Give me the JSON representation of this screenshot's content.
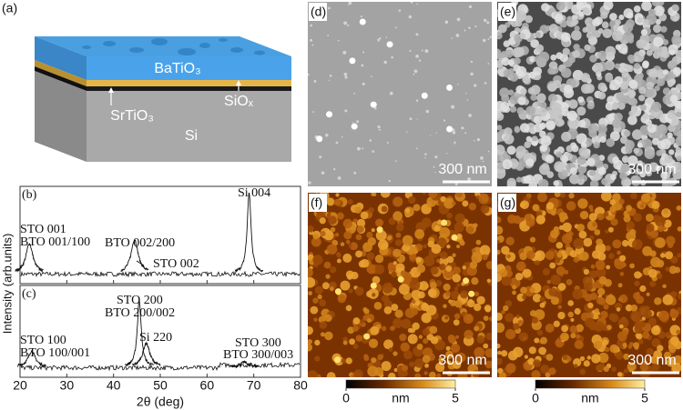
{
  "panel_a": {
    "label": "(a)",
    "top_layer": "BaTiO₃",
    "buffer_layer": "SrTiO₃",
    "oxide_layer": "SiOₓ",
    "substrate": "Si"
  },
  "xrd": {
    "xlim": [
      20,
      80
    ],
    "xticks": [
      20,
      30,
      40,
      50,
      60,
      70,
      80
    ],
    "xlabel": "2θ (deg)",
    "ylabel": "Intensity (arb.units)",
    "panels": [
      {
        "label": "(b)",
        "peaks": [
          22,
          44.5,
          69
        ],
        "heights": [
          0.35,
          0.4,
          0.95
        ],
        "annotations": [
          "Si 004",
          "STO 001",
          "BTO 001/100",
          "BTO 002/200",
          "STO 002"
        ]
      },
      {
        "label": "(c)",
        "peaks": [
          22.5,
          45.5,
          47,
          68
        ],
        "heights": [
          0.2,
          0.85,
          0.3,
          0.06
        ],
        "annotations": [
          "STO 200",
          "BTO 200/002",
          "Si 220",
          "STO 100",
          "BTO 100/001",
          "STO 300",
          "BTO 300/003"
        ]
      }
    ]
  },
  "images": [
    {
      "label": "(d)",
      "scale_bar": "300 nm"
    },
    {
      "label": "(e)",
      "scale_bar": "300 nm"
    },
    {
      "label": "(f)",
      "scale_bar": "300 nm",
      "colorbar": {
        "ticks": [
          0,
          5
        ],
        "unit": "nm"
      }
    },
    {
      "label": "(g)",
      "scale_bar": "300 nm",
      "colorbar": {
        "ticks": [
          0,
          5
        ],
        "unit": "nm"
      }
    }
  ]
}
